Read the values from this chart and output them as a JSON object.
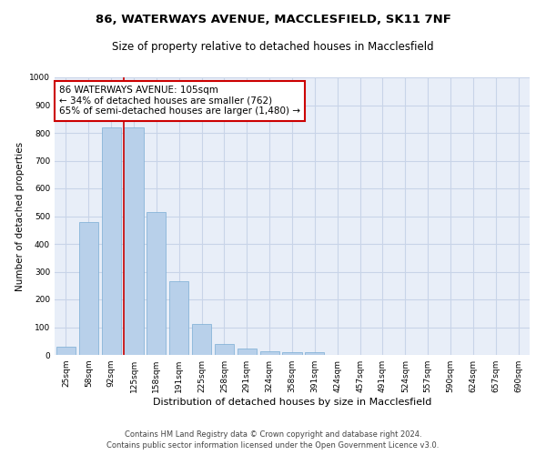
{
  "title1": "86, WATERWAYS AVENUE, MACCLESFIELD, SK11 7NF",
  "title2": "Size of property relative to detached houses in Macclesfield",
  "xlabel": "Distribution of detached houses by size in Macclesfield",
  "ylabel": "Number of detached properties",
  "bin_labels": [
    "25sqm",
    "58sqm",
    "92sqm",
    "125sqm",
    "158sqm",
    "191sqm",
    "225sqm",
    "258sqm",
    "291sqm",
    "324sqm",
    "358sqm",
    "391sqm",
    "424sqm",
    "457sqm",
    "491sqm",
    "524sqm",
    "557sqm",
    "590sqm",
    "624sqm",
    "657sqm",
    "690sqm"
  ],
  "bar_values": [
    30,
    480,
    820,
    820,
    515,
    265,
    110,
    38,
    22,
    12,
    9,
    9,
    0,
    0,
    0,
    0,
    0,
    0,
    0,
    0,
    0
  ],
  "bar_color": "#b8d0ea",
  "bar_edge_color": "#7aadd4",
  "grid_color": "#c8d4e8",
  "bg_color": "#e8eef8",
  "vline_x": 2.55,
  "vline_color": "#cc0000",
  "annotation_text": "86 WATERWAYS AVENUE: 105sqm\n← 34% of detached houses are smaller (762)\n65% of semi-detached houses are larger (1,480) →",
  "annotation_box_color": "#cc0000",
  "ylim": [
    0,
    1000
  ],
  "yticks": [
    0,
    100,
    200,
    300,
    400,
    500,
    600,
    700,
    800,
    900,
    1000
  ],
  "footer1": "Contains HM Land Registry data © Crown copyright and database right 2024.",
  "footer2": "Contains public sector information licensed under the Open Government Licence v3.0.",
  "title1_fontsize": 9.5,
  "title2_fontsize": 8.5,
  "xlabel_fontsize": 8,
  "ylabel_fontsize": 7.5,
  "tick_fontsize": 6.5,
  "annotation_fontsize": 7.5,
  "footer_fontsize": 6
}
